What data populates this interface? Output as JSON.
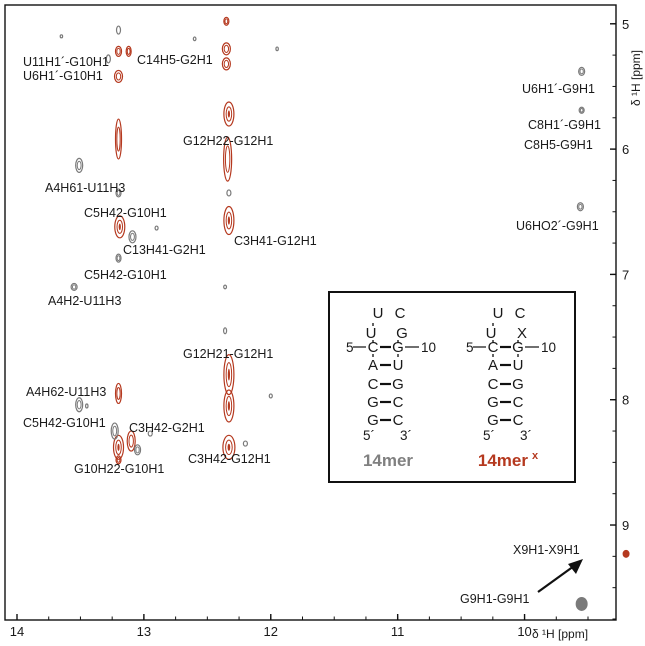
{
  "chart_data": {
    "type": "scatter",
    "title": "",
    "x_axis": {
      "label": "δ ¹H [ppm]",
      "range": [
        14,
        9.5
      ],
      "reversed": true,
      "ticks": [
        "14",
        "13",
        "12",
        "11",
        "10"
      ]
    },
    "y_axis": {
      "label": "δ ¹H [ppm]",
      "range": [
        4.85,
        9.75
      ],
      "reversed": true,
      "position": "right",
      "ticks": [
        "5",
        "6",
        "7",
        "8",
        "9"
      ]
    },
    "grid": false,
    "series": [
      {
        "name": "14mer",
        "color": "#7a7a7a"
      },
      {
        "name": "14mer x",
        "color": "#b5391f"
      }
    ],
    "annotations": [
      {
        "id": "a1",
        "text": "U11H1´-G10H1"
      },
      {
        "id": "a2",
        "text": "U6H1´-G10H1"
      },
      {
        "id": "a3",
        "text": "C14H5-G2H1"
      },
      {
        "id": "a4",
        "text": "U6H1´-G9H1"
      },
      {
        "id": "a5",
        "text": "C8H1´-G9H1"
      },
      {
        "id": "a6",
        "text": "C8H5-G9H1"
      },
      {
        "id": "a7",
        "text": "G12H22-G12H1"
      },
      {
        "id": "a8",
        "text": "A4H61-U11H3"
      },
      {
        "id": "a9",
        "text": "C5H42-G10H1"
      },
      {
        "id": "a10",
        "text": "U6HO2´-G9H1"
      },
      {
        "id": "a11",
        "text": "C3H41-G12H1"
      },
      {
        "id": "a12",
        "text": "C13H41-G2H1"
      },
      {
        "id": "a13",
        "text": "C5H42-G10H1"
      },
      {
        "id": "a14",
        "text": "A4H2-U11H3"
      },
      {
        "id": "a15",
        "text": "G12H21-G12H1"
      },
      {
        "id": "a16",
        "text": "A4H62-U11H3"
      },
      {
        "id": "a17",
        "text": "C5H42-G10H1"
      },
      {
        "id": "a18",
        "text": "C3H42-G2H1"
      },
      {
        "id": "a19",
        "text": "G10H22-G10H1"
      },
      {
        "id": "a20",
        "text": "C3H42-G12H1"
      },
      {
        "id": "a21",
        "text": "X9H1-X9H1"
      },
      {
        "id": "a22",
        "text": "G9H1-G9H1"
      }
    ],
    "cross_peaks": [
      {
        "label": "U6H1´-G9H1",
        "x": 9.55,
        "y": 5.38,
        "series": "14mer"
      },
      {
        "label": "C8H1´-G9H1",
        "x": 9.55,
        "y": 5.69,
        "series": "14mer"
      },
      {
        "label": "U6HO2´-G9H1",
        "x": 9.56,
        "y": 6.46,
        "series": "14mer"
      },
      {
        "label": "A4H61-U11H3",
        "x": 13.51,
        "y": 6.13,
        "series": "14mer"
      },
      {
        "label": "A4H2-U11H3",
        "x": 13.55,
        "y": 7.1,
        "series": "14mer"
      },
      {
        "label": "A4H62-U11H3",
        "x": 13.51,
        "y": 8.04,
        "series": "14mer"
      },
      {
        "label": "G9H1-G9H1",
        "x": 9.55,
        "y": 9.63,
        "series": "14mer"
      },
      {
        "label": "X9H1-X9H1",
        "x": 9.2,
        "y": 9.23,
        "series": "14mer x"
      },
      {
        "label": "C14H5-G2H1",
        "x": 12.35,
        "y": 5.2,
        "series": "14mer x"
      },
      {
        "label": "G12H22-G12H1",
        "x": 12.33,
        "y": 5.72,
        "series": "14mer x"
      },
      {
        "label": "C3H41-G12H1",
        "x": 12.33,
        "y": 6.57,
        "series": "14mer x"
      },
      {
        "label": "G12H21-G12H1",
        "x": 12.33,
        "y": 7.8,
        "series": "14mer x"
      },
      {
        "label": "C5H42-G10H1",
        "x": 13.19,
        "y": 6.62,
        "series": "14mer x"
      },
      {
        "label": "C13H41-G2H1",
        "x": 13.09,
        "y": 6.7,
        "series": "14mer"
      },
      {
        "label": "C3H42-G2H1",
        "x": 13.1,
        "y": 8.33,
        "series": "14mer x"
      },
      {
        "label": "G10H22-G10H1",
        "x": 13.2,
        "y": 8.38,
        "series": "14mer x"
      },
      {
        "label": "C3H42-G12H1",
        "x": 12.33,
        "y": 8.38,
        "series": "14mer x"
      }
    ],
    "inset": {
      "structures": [
        {
          "name": "14mer",
          "color": "#808080",
          "loop": [
            "U",
            "C"
          ],
          "rows": [
            [
              "U",
              "G"
            ],
            [
              "C",
              "G"
            ],
            [
              "A",
              "U"
            ],
            [
              "C",
              "G"
            ],
            [
              "G",
              "C"
            ],
            [
              "G",
              "C"
            ]
          ],
          "num_left": "5",
          "num_right": "10",
          "end_left": "5´",
          "end_right": "3´"
        },
        {
          "name": "14mer",
          "superscript": "x",
          "color": "#b5391f",
          "loop": [
            "U",
            "C"
          ],
          "rows": [
            [
              "U",
              "X"
            ],
            [
              "C",
              "G"
            ],
            [
              "A",
              "U"
            ],
            [
              "C",
              "G"
            ],
            [
              "G",
              "C"
            ],
            [
              "G",
              "C"
            ]
          ],
          "num_left": "5",
          "num_right": "10",
          "end_left": "5´",
          "end_right": "3´"
        }
      ]
    }
  }
}
